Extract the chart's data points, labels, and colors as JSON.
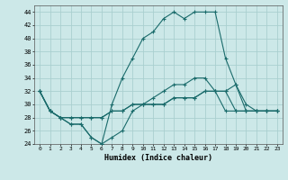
{
  "xlabel": "Humidex (Indice chaleur)",
  "ylabel": "",
  "bg_color": "#cce8e8",
  "grid_color": "#aacfcf",
  "line_color": "#1a6b6b",
  "xlim": [
    -0.5,
    23.5
  ],
  "ylim": [
    24,
    45
  ],
  "yticks": [
    24,
    26,
    28,
    30,
    32,
    34,
    36,
    38,
    40,
    42,
    44
  ],
  "xticks": [
    0,
    1,
    2,
    3,
    4,
    5,
    6,
    7,
    8,
    9,
    10,
    11,
    12,
    13,
    14,
    15,
    16,
    17,
    18,
    19,
    20,
    21,
    22,
    23
  ],
  "series": [
    [
      32,
      29,
      28,
      27,
      27,
      25,
      24,
      30,
      34,
      37,
      40,
      41,
      43,
      44,
      43,
      44,
      44,
      44,
      37,
      33,
      30,
      29,
      29,
      29
    ],
    [
      32,
      29,
      28,
      27,
      27,
      25,
      24,
      25,
      26,
      29,
      30,
      31,
      32,
      33,
      33,
      34,
      34,
      32,
      29,
      29,
      29,
      29,
      29,
      29
    ],
    [
      32,
      29,
      28,
      28,
      28,
      28,
      28,
      29,
      29,
      30,
      30,
      30,
      30,
      31,
      31,
      31,
      32,
      32,
      32,
      33,
      29,
      29,
      29,
      29
    ],
    [
      32,
      29,
      28,
      28,
      28,
      28,
      28,
      29,
      29,
      30,
      30,
      30,
      30,
      31,
      31,
      31,
      32,
      32,
      32,
      29,
      29,
      29,
      29,
      29
    ]
  ]
}
